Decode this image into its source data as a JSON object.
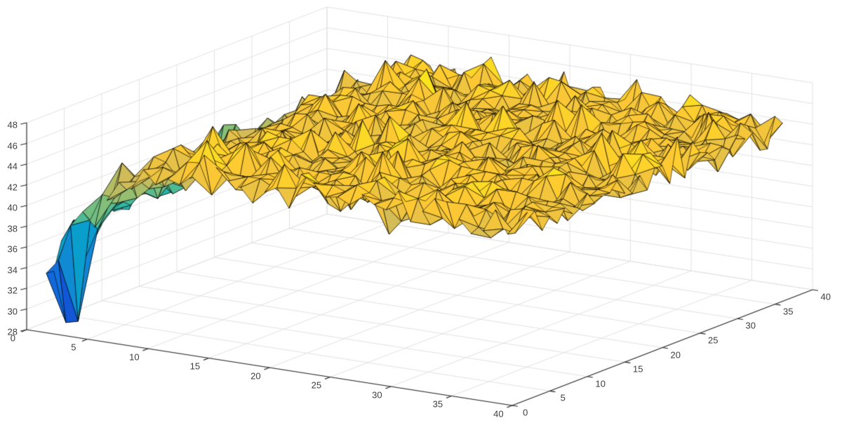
{
  "chart_data": {
    "type": "surface",
    "title": "",
    "xlabel": "",
    "ylabel": "",
    "zlabel": "",
    "x_ticks": [
      0,
      5,
      10,
      15,
      20,
      25,
      30,
      35,
      40
    ],
    "y_ticks": [
      0,
      5,
      10,
      15,
      20,
      25,
      30,
      35,
      40
    ],
    "z_ticks": [
      28,
      30,
      32,
      34,
      36,
      38,
      40,
      42,
      44,
      46,
      48
    ],
    "xlim": [
      0,
      40
    ],
    "ylim": [
      0,
      40
    ],
    "zlim": [
      28,
      48
    ],
    "grid": true,
    "legend": null,
    "background": "#ffffff",
    "axis_color": "#262626",
    "grid_color": "#e1e1e1",
    "label_color": "#3e3e3e",
    "edge_color": "rgba(0,0,0,0.88)",
    "colormap": {
      "name": "parula",
      "stops": [
        "#352a87",
        "#0f5cdd",
        "#1481d6",
        "#06a4ca",
        "#2eb7a4",
        "#87bf77",
        "#d1bb59",
        "#fec832",
        "#f9fb0e"
      ]
    },
    "surface": {
      "description": "Noisy random terrain, mostly orange-yellow (z approx 42-47). Heights ramp down to green/teal (z approx 33-40) along the low-x edge, with one deep blue spike descending to z approx 28.5 near (x=2, y=2). Faceted triangles with black mesh edges (MATLAB surf style).",
      "x_range": [
        1,
        40
      ],
      "y_range": [
        1,
        36
      ],
      "base_level": 44.9,
      "left_ramp_start_x": 10,
      "left_ramp_per_unit": 0.78,
      "corner_dip_factor": 0.16,
      "noise_amplitude": 2.1,
      "peak_bonus": 1.9,
      "dip_bonus": 1.7,
      "spike": {
        "x": 2,
        "y": 2,
        "z": 28.5,
        "neighbor_z": 28.8
      },
      "z_clamp": [
        29.8,
        47.8
      ],
      "color_min": 28.5,
      "seed": 20
    }
  }
}
